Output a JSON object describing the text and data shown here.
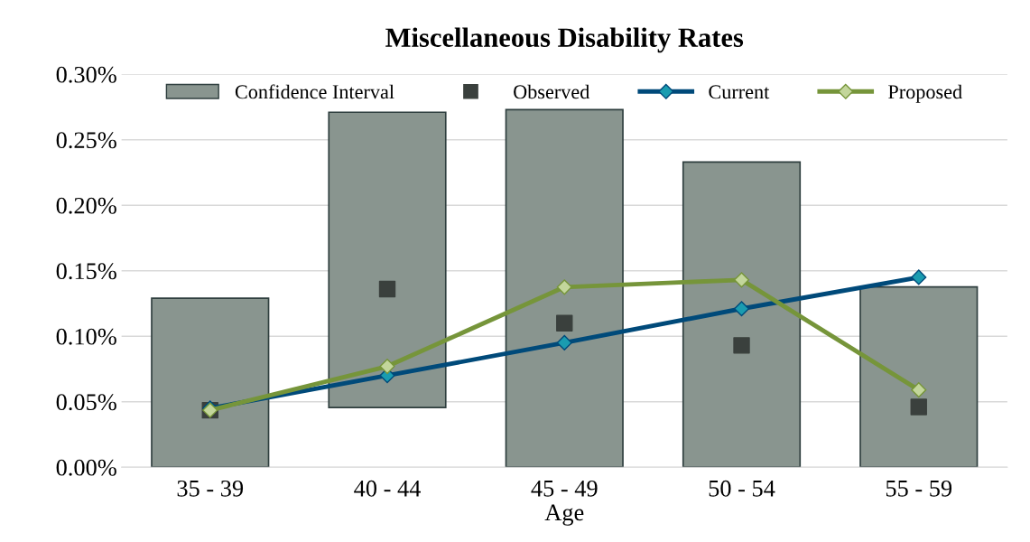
{
  "chart_data": {
    "type": "bar",
    "title": "Miscellaneous Disability Rates",
    "xlabel": "Age",
    "categories": [
      "35 - 39",
      "40 - 44",
      "45 - 49",
      "50 - 54",
      "55 - 59"
    ],
    "series": [
      {
        "name": "Confidence Interval",
        "color": "#89958f",
        "base": [
          0,
          0.0456,
          0,
          0,
          0
        ],
        "values": [
          0.129,
          0.2254,
          0.273,
          0.233,
          0.1376
        ]
      },
      {
        "name": "Observed",
        "type": "scatter",
        "color": "#3a403d",
        "marker": "square",
        "values": [
          0.0435,
          0.136,
          0.11,
          0.093,
          0.046
        ]
      },
      {
        "name": "Current",
        "type": "line",
        "color": "#004a7a",
        "marker": "diamond",
        "values": [
          0.045,
          0.07,
          0.095,
          0.121,
          0.145
        ]
      },
      {
        "name": "Proposed",
        "type": "line",
        "color": "#76953a",
        "marker": "diamond",
        "values": [
          0.0435,
          0.077,
          0.1375,
          0.143,
          0.059
        ]
      }
    ],
    "ylim": [
      0,
      0.3
    ],
    "yticks": [
      {
        "value": 0,
        "label": "0.00%"
      },
      {
        "value": 0.05,
        "label": "0.05%"
      },
      {
        "value": 0.1,
        "label": "0.10%"
      },
      {
        "value": 0.15,
        "label": "0.15%"
      },
      {
        "value": 0.2,
        "label": "0.20%"
      },
      {
        "value": 0.25,
        "label": "0.25%"
      },
      {
        "value": 0.3,
        "label": "0.30%"
      }
    ],
    "grid": "y",
    "legend": "top"
  }
}
